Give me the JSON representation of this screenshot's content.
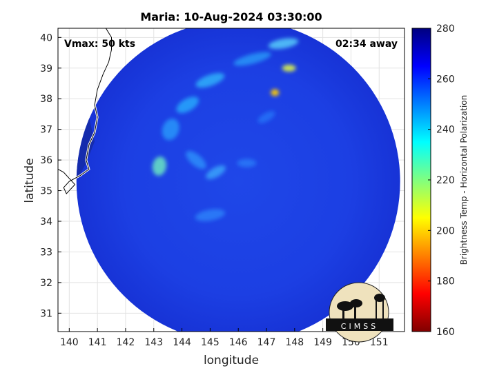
{
  "chart_data": {
    "type": "heatmap",
    "title": "Maria: 10-Aug-2024 03:30:00",
    "xlabel": "longitude",
    "ylabel": "latitude",
    "x_ticks": [
      140,
      141,
      142,
      143,
      144,
      145,
      146,
      147,
      148,
      149,
      150,
      151
    ],
    "y_ticks": [
      31,
      32,
      33,
      34,
      35,
      36,
      37,
      38,
      39,
      40
    ],
    "xlim": [
      139.6,
      151.9
    ],
    "ylim": [
      30.4,
      40.3
    ],
    "grid": true,
    "annotations": {
      "vmax": "Vmax: 50 kts",
      "time_offset": "02:34 away"
    },
    "colorbar": {
      "label": "Brightness Temp - Horizontal Polarization",
      "range": [
        160,
        280
      ],
      "ticks": [
        160,
        180,
        200,
        220,
        240,
        260,
        280
      ],
      "colormap": "jet"
    },
    "swath": {
      "center": [
        146.0,
        35.3
      ],
      "radius_deg": 5.5
    },
    "logo_text": "CIMSS"
  }
}
